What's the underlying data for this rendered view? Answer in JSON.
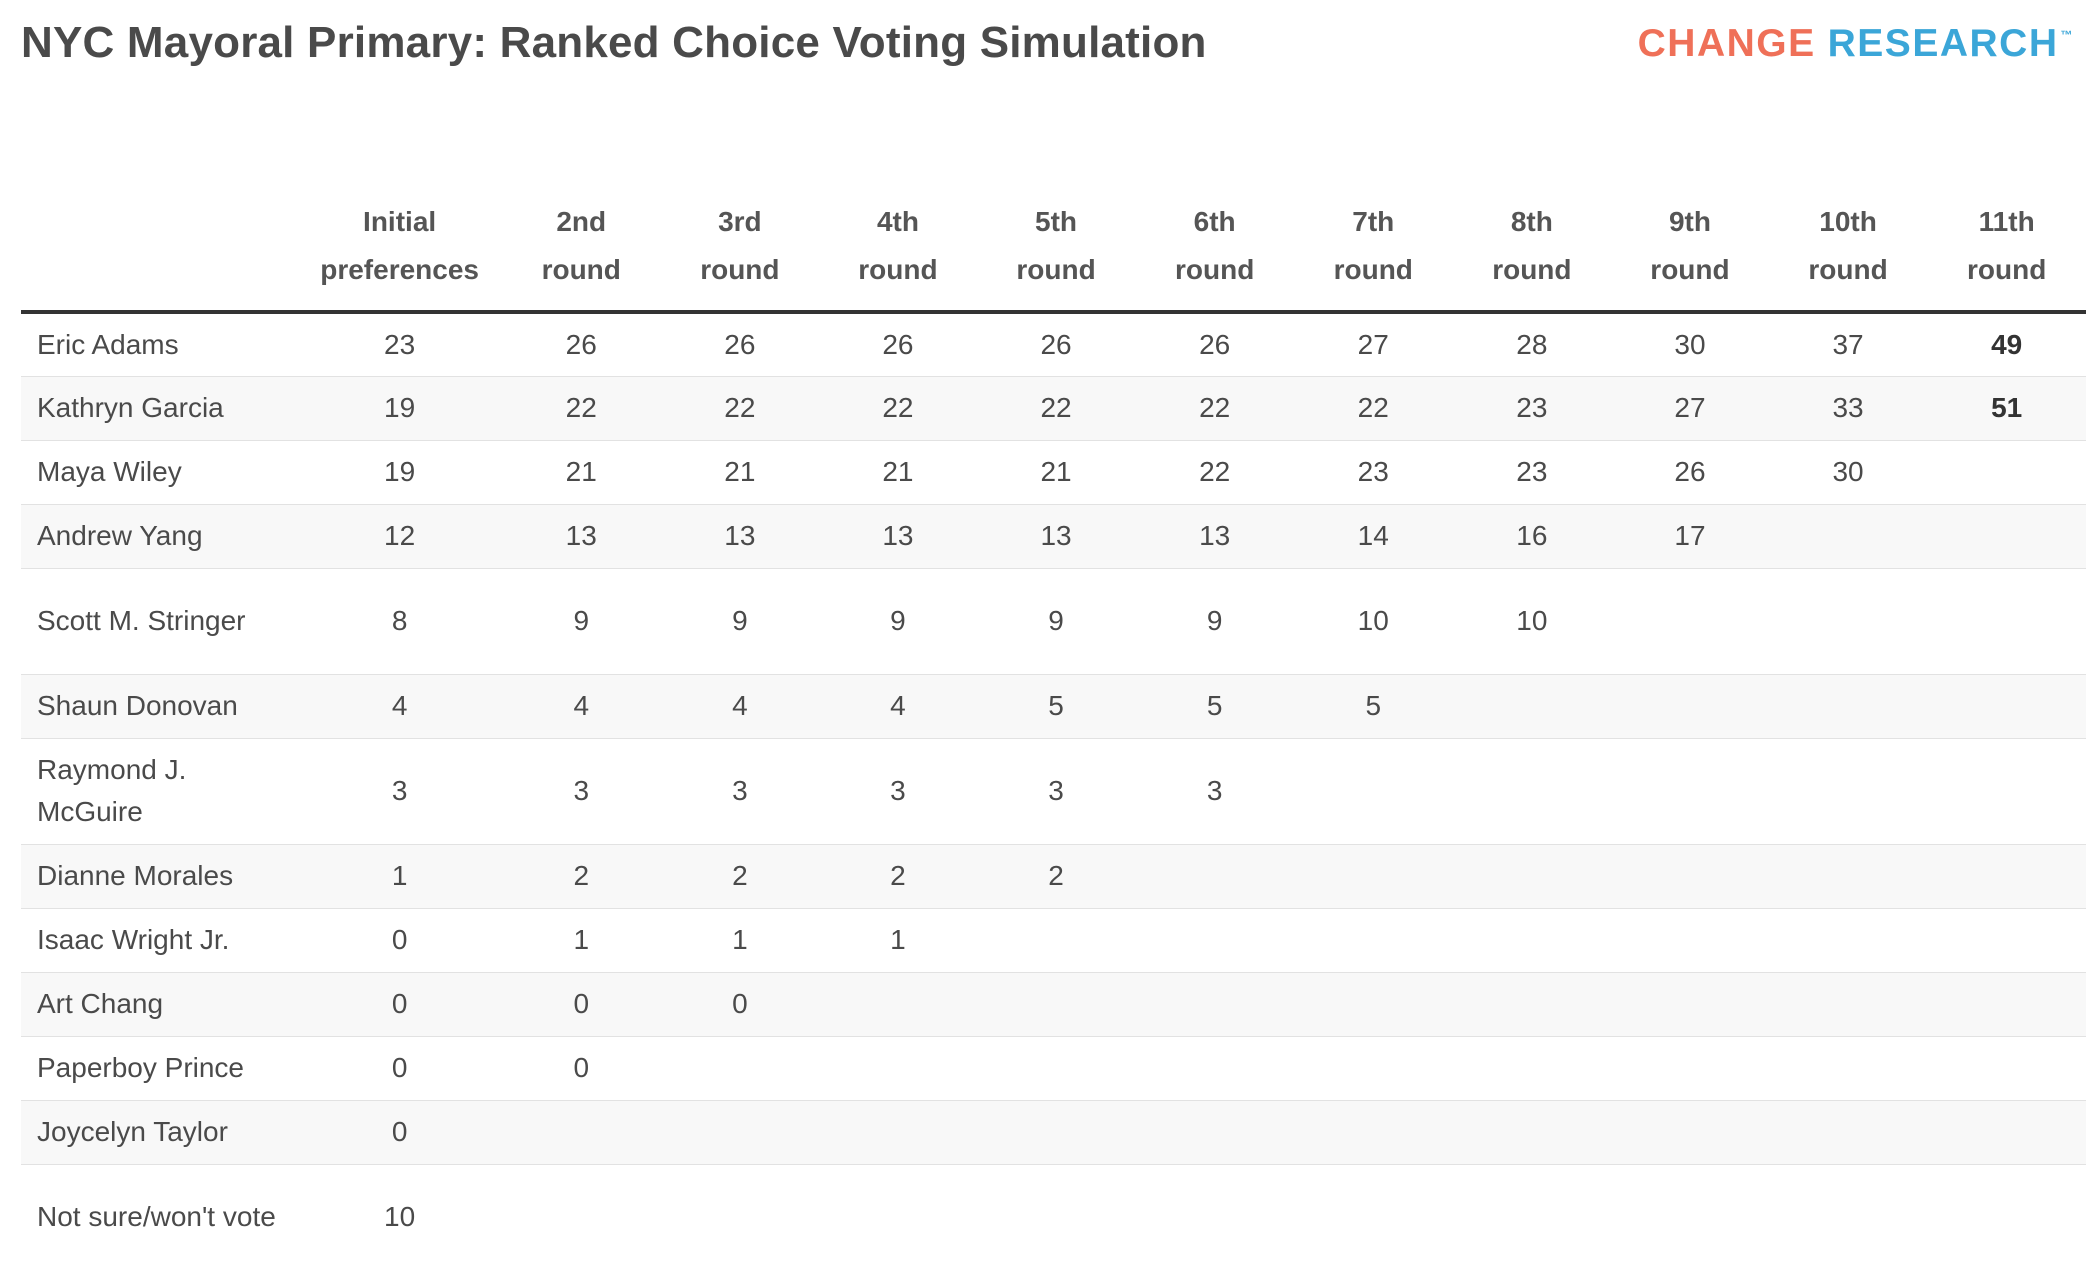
{
  "title": "NYC Mayoral Primary: Ranked Choice Voting Simulation",
  "logo": {
    "word1": "CHANGE",
    "word2": "RESEARCH",
    "tm": "™",
    "color1": "#ef7058",
    "color2": "#3ba6d8"
  },
  "chart_data": {
    "type": "table",
    "title": "NYC Mayoral Primary: Ranked Choice Voting Simulation",
    "columns": [
      {
        "line1": "Initial",
        "line2": "preferences"
      },
      {
        "line1": "2nd",
        "line2": "round"
      },
      {
        "line1": "3rd",
        "line2": "round"
      },
      {
        "line1": "4th",
        "line2": "round"
      },
      {
        "line1": "5th",
        "line2": "round"
      },
      {
        "line1": "6th",
        "line2": "round"
      },
      {
        "line1": "7th",
        "line2": "round"
      },
      {
        "line1": "8th",
        "line2": "round"
      },
      {
        "line1": "9th",
        "line2": "round"
      },
      {
        "line1": "10th",
        "line2": "round"
      },
      {
        "line1": "11th",
        "line2": "round"
      }
    ],
    "rows": [
      {
        "candidate": "Eric Adams",
        "values": [
          23,
          26,
          26,
          26,
          26,
          26,
          27,
          28,
          30,
          37,
          49
        ]
      },
      {
        "candidate": "Kathryn Garcia",
        "values": [
          19,
          22,
          22,
          22,
          22,
          22,
          22,
          23,
          27,
          33,
          51
        ]
      },
      {
        "candidate": "Maya Wiley",
        "values": [
          19,
          21,
          21,
          21,
          21,
          22,
          23,
          23,
          26,
          30,
          null
        ]
      },
      {
        "candidate": "Andrew Yang",
        "values": [
          12,
          13,
          13,
          13,
          13,
          13,
          14,
          16,
          17,
          null,
          null
        ]
      },
      {
        "candidate": "Scott M. Stringer",
        "values": [
          8,
          9,
          9,
          9,
          9,
          9,
          10,
          10,
          null,
          null,
          null
        ]
      },
      {
        "candidate": "Shaun Donovan",
        "values": [
          4,
          4,
          4,
          4,
          5,
          5,
          5,
          null,
          null,
          null,
          null
        ]
      },
      {
        "candidate": "Raymond J. McGuire",
        "values": [
          3,
          3,
          3,
          3,
          3,
          3,
          null,
          null,
          null,
          null,
          null
        ]
      },
      {
        "candidate": "Dianne Morales",
        "values": [
          1,
          2,
          2,
          2,
          2,
          null,
          null,
          null,
          null,
          null,
          null
        ]
      },
      {
        "candidate": "Isaac Wright Jr.",
        "values": [
          0,
          1,
          1,
          1,
          null,
          null,
          null,
          null,
          null,
          null,
          null
        ]
      },
      {
        "candidate": "Art Chang",
        "values": [
          0,
          0,
          0,
          null,
          null,
          null,
          null,
          null,
          null,
          null,
          null
        ]
      },
      {
        "candidate": "Paperboy Prince",
        "values": [
          0,
          0,
          null,
          null,
          null,
          null,
          null,
          null,
          null,
          null,
          null
        ]
      },
      {
        "candidate": "Joycelyn Taylor",
        "values": [
          0,
          null,
          null,
          null,
          null,
          null,
          null,
          null,
          null,
          null,
          null
        ]
      },
      {
        "candidate": "Not sure/won't vote",
        "values": [
          10,
          null,
          null,
          null,
          null,
          null,
          null,
          null,
          null,
          null,
          null
        ]
      }
    ],
    "bold_final_round": true
  }
}
